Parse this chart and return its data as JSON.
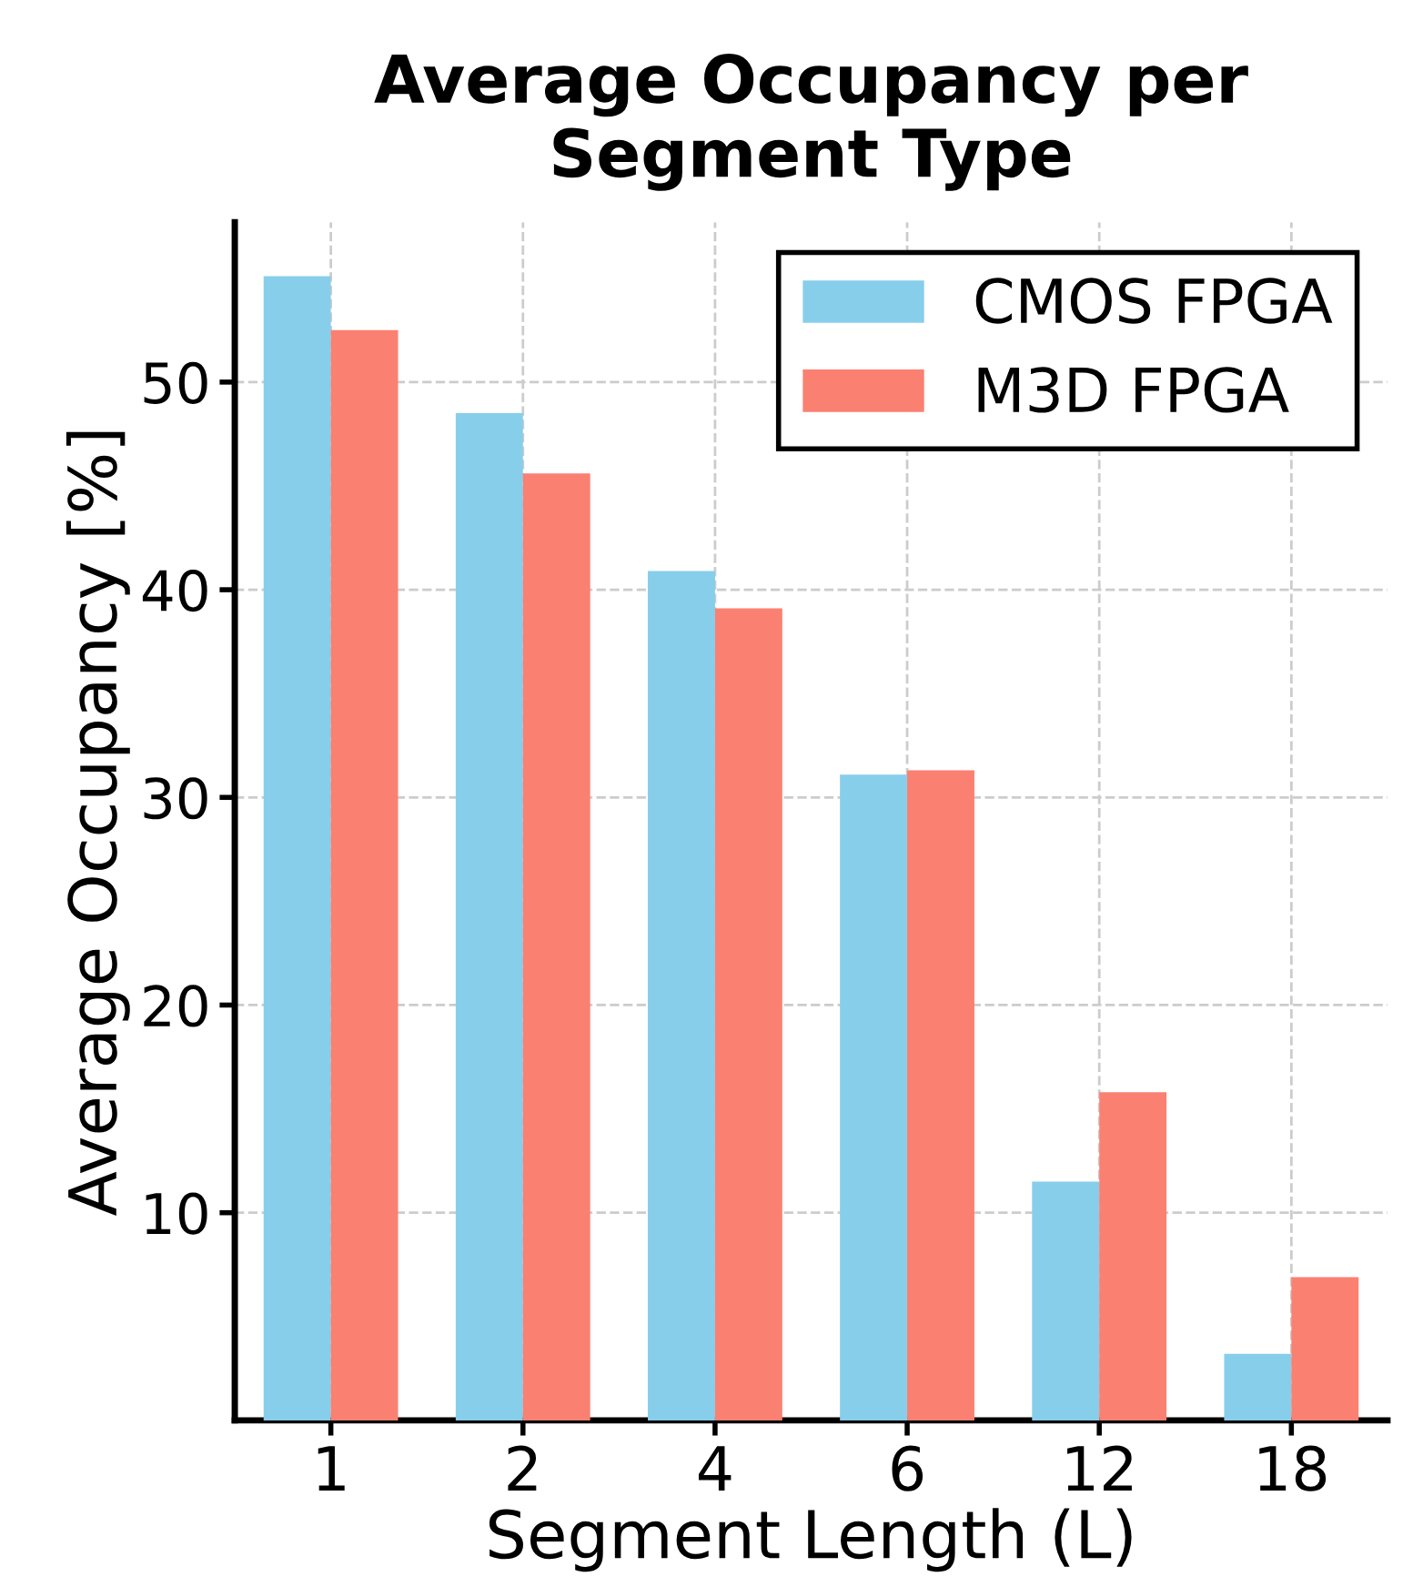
{
  "chart_data": {
    "type": "bar",
    "title": "Average Occupancy per\nSegment Type",
    "xlabel": "Segment Length (L)",
    "ylabel": "Average Occupancy [%]",
    "categories": [
      "1",
      "2",
      "4",
      "6",
      "12",
      "18"
    ],
    "series": [
      {
        "name": "CMOS FPGA",
        "color": "#87ceeb",
        "values": [
          55.1,
          48.5,
          40.9,
          31.1,
          11.5,
          3.2
        ]
      },
      {
        "name": "M3D FPGA",
        "color": "#fa8072",
        "values": [
          52.5,
          45.6,
          39.1,
          31.3,
          15.8,
          6.9
        ]
      }
    ],
    "ylim": [
      0,
      57.7
    ],
    "yticks": [
      10,
      20,
      30,
      40,
      50
    ],
    "grid": true,
    "legend": "top right"
  }
}
